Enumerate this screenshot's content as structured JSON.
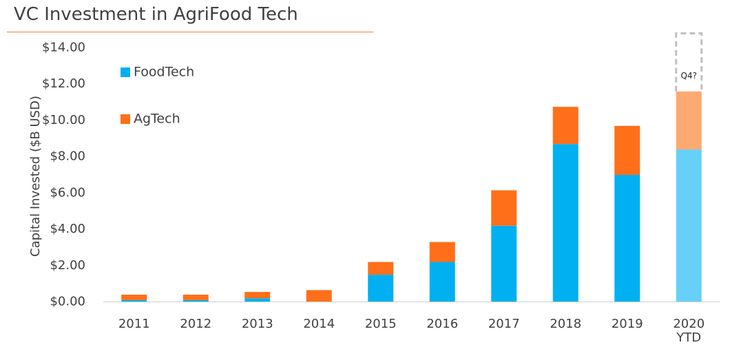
{
  "chart_data": {
    "type": "bar",
    "stacked": true,
    "title": "VC Investment in AgriFood Tech",
    "ylabel": "Capital Invested ($B USD)",
    "xlabel": "",
    "ylim": [
      0,
      14
    ],
    "y_ticks": [
      "$0.00",
      "$2.00",
      "$4.00",
      "$6.00",
      "$8.00",
      "$10.00",
      "$12.00",
      "$14.00"
    ],
    "categories": [
      "2011",
      "2012",
      "2013",
      "2014",
      "2015",
      "2016",
      "2017",
      "2018",
      "2019",
      "2020"
    ],
    "category_sublabels": [
      "",
      "",
      "",
      "",
      "",
      "",
      "",
      "",
      "",
      "YTD"
    ],
    "series": [
      {
        "name": "FoodTech",
        "color": "#00b0f0",
        "highlight_color": "#66d0f8",
        "values": [
          0.1,
          0.1,
          0.2,
          0.0,
          1.5,
          2.2,
          4.2,
          8.7,
          7.0,
          8.4
        ]
      },
      {
        "name": "AgTech",
        "color": "#ff6f1a",
        "highlight_color": "#fdaa72",
        "values": [
          0.3,
          0.3,
          0.35,
          0.65,
          0.7,
          1.1,
          1.95,
          2.05,
          2.7,
          3.2
        ]
      }
    ],
    "highlighted_category": "2020",
    "projection": {
      "category": "2020",
      "top_value": 14.8,
      "label": "Q4?"
    },
    "legend": "top-left",
    "grid": false
  }
}
